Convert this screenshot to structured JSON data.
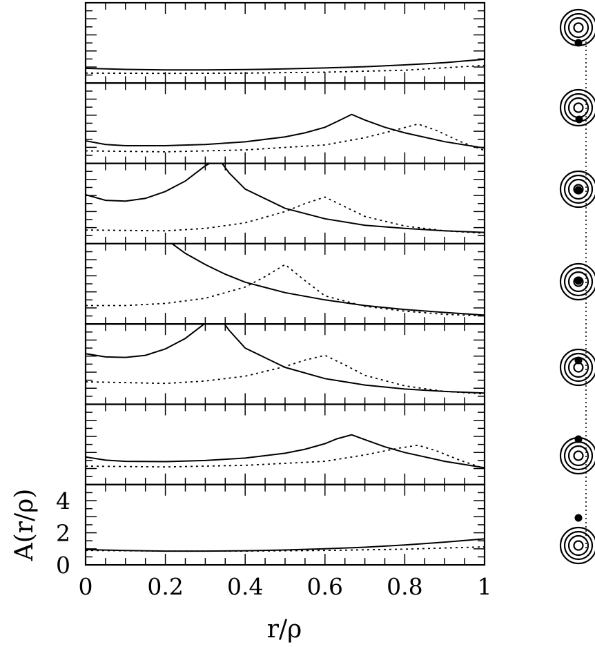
{
  "chart_data": {
    "type": "line",
    "layout": "seven vertically stacked panels sharing one x-axis, with a column of lens/source diagrams to the right",
    "xlabel": "r/ρ",
    "ylabel": "A(r/ρ)",
    "xlim": [
      0,
      1
    ],
    "ylim": [
      0,
      5
    ],
    "x_ticks": [
      "0",
      "0.2",
      "0.4",
      "0.6",
      "0.8",
      "1"
    ],
    "y_ticks": [
      "0",
      "2",
      "4"
    ],
    "grid": false,
    "panels": [
      {
        "series": [
          {
            "style": "solid",
            "x": [
              0,
              0.1,
              0.2,
              0.3,
              0.4,
              0.5,
              0.6,
              0.7,
              0.8,
              0.9,
              1.0
            ],
            "y": [
              0.92,
              0.85,
              0.82,
              0.82,
              0.84,
              0.88,
              0.94,
              1.02,
              1.13,
              1.27,
              1.48
            ]
          },
          {
            "style": "dotted",
            "x": [
              0,
              0.2,
              0.4,
              0.6,
              0.8,
              1.0
            ],
            "y": [
              0.62,
              0.6,
              0.62,
              0.68,
              0.8,
              1.1
            ]
          }
        ]
      },
      {
        "series": [
          {
            "style": "solid",
            "x": [
              0,
              0.05,
              0.1,
              0.2,
              0.3,
              0.4,
              0.5,
              0.55,
              0.6,
              0.63,
              0.667,
              0.7,
              0.75,
              0.8,
              0.9,
              1.0
            ],
            "y": [
              1.4,
              1.18,
              1.1,
              1.1,
              1.18,
              1.34,
              1.65,
              1.9,
              2.25,
              2.6,
              3.05,
              2.7,
              2.25,
              1.9,
              1.35,
              0.95
            ]
          },
          {
            "style": "dotted",
            "x": [
              0,
              0.2,
              0.4,
              0.6,
              0.7,
              0.78,
              0.833,
              0.88,
              0.94,
              1.0
            ],
            "y": [
              0.78,
              0.72,
              0.84,
              1.15,
              1.6,
              2.1,
              2.45,
              2.05,
              1.35,
              0.8
            ]
          }
        ]
      },
      {
        "series": [
          {
            "style": "solid",
            "x": [
              0,
              0.05,
              0.1,
              0.15,
              0.2,
              0.25,
              0.3,
              0.333,
              0.36,
              0.4,
              0.5,
              0.6,
              0.7,
              0.8,
              0.9,
              1.0
            ],
            "y": [
              3.05,
              2.7,
              2.65,
              2.82,
              3.25,
              3.9,
              4.85,
              5.3,
              4.4,
              3.4,
              2.2,
              1.55,
              1.15,
              0.95,
              0.8,
              0.7
            ]
          },
          {
            "style": "dotted",
            "x": [
              0,
              0.2,
              0.3,
              0.4,
              0.5,
              0.55,
              0.6,
              0.65,
              0.7,
              0.8,
              0.9,
              1.0
            ],
            "y": [
              0.85,
              0.8,
              0.95,
              1.3,
              2.0,
              2.5,
              2.9,
              2.3,
              1.7,
              1.1,
              0.8,
              0.65
            ]
          }
        ]
      },
      {
        "series": [
          {
            "style": "solid",
            "x": [
              0.2,
              0.25,
              0.3,
              0.35,
              0.4,
              0.5,
              0.6,
              0.7,
              0.8,
              0.9,
              1.0
            ],
            "y": [
              5.3,
              4.4,
              3.7,
              3.1,
              2.6,
              1.95,
              1.5,
              1.15,
              0.9,
              0.72,
              0.55
            ]
          },
          {
            "style": "dotted",
            "x": [
              0,
              0.1,
              0.2,
              0.3,
              0.4,
              0.45,
              0.5,
              0.55,
              0.6,
              0.7,
              0.8,
              0.9,
              1.0
            ],
            "y": [
              1.15,
              1.15,
              1.28,
              1.6,
              2.3,
              2.95,
              3.7,
              2.7,
              1.75,
              1.1,
              0.8,
              0.6,
              0.5
            ]
          }
        ]
      },
      {
        "series": [
          {
            "style": "solid",
            "x": [
              0,
              0.05,
              0.1,
              0.15,
              0.2,
              0.25,
              0.3,
              0.333,
              0.36,
              0.4,
              0.5,
              0.6,
              0.7,
              0.8,
              0.9,
              1.0
            ],
            "y": [
              3.15,
              2.95,
              2.92,
              3.05,
              3.45,
              4.1,
              5.05,
              5.5,
              4.6,
              3.5,
              2.3,
              1.6,
              1.2,
              0.95,
              0.8,
              0.7
            ]
          },
          {
            "style": "dotted",
            "x": [
              0,
              0.2,
              0.3,
              0.4,
              0.5,
              0.55,
              0.6,
              0.65,
              0.7,
              0.8,
              0.9,
              1.0
            ],
            "y": [
              1.4,
              1.3,
              1.45,
              1.75,
              2.35,
              2.75,
              3.05,
              2.45,
              1.8,
              1.15,
              0.8,
              0.65
            ]
          }
        ]
      },
      {
        "series": [
          {
            "style": "solid",
            "x": [
              0,
              0.05,
              0.1,
              0.2,
              0.3,
              0.4,
              0.5,
              0.55,
              0.6,
              0.63,
              0.667,
              0.7,
              0.75,
              0.8,
              0.9,
              1.0
            ],
            "y": [
              1.72,
              1.52,
              1.45,
              1.43,
              1.5,
              1.65,
              1.95,
              2.2,
              2.55,
              2.85,
              3.1,
              2.8,
              2.35,
              2.0,
              1.45,
              1.05
            ]
          },
          {
            "style": "dotted",
            "x": [
              0,
              0.2,
              0.4,
              0.6,
              0.7,
              0.78,
              0.833,
              0.88,
              0.94,
              1.0
            ],
            "y": [
              1.15,
              1.1,
              1.2,
              1.45,
              1.85,
              2.25,
              2.45,
              2.1,
              1.5,
              1.0
            ]
          }
        ]
      },
      {
        "series": [
          {
            "style": "solid",
            "x": [
              0,
              0.1,
              0.2,
              0.3,
              0.4,
              0.5,
              0.6,
              0.7,
              0.8,
              0.9,
              1.0
            ],
            "y": [
              0.95,
              0.9,
              0.86,
              0.86,
              0.88,
              0.93,
              1.0,
              1.1,
              1.24,
              1.42,
              1.62
            ]
          },
          {
            "style": "dotted",
            "x": [
              0,
              0.2,
              0.4,
              0.6,
              0.8,
              1.0
            ],
            "y": [
              0.9,
              0.86,
              0.86,
              0.9,
              0.98,
              1.12
            ]
          }
        ]
      }
    ],
    "diagrams": [
      {
        "dot_position": "below-left"
      },
      {
        "dot_position": "lower-right"
      },
      {
        "dot_position": "inside-center"
      },
      {
        "dot_position": "center"
      },
      {
        "dot_position": "inside-top"
      },
      {
        "dot_position": "above"
      },
      {
        "dot_position": "far-above"
      }
    ]
  }
}
